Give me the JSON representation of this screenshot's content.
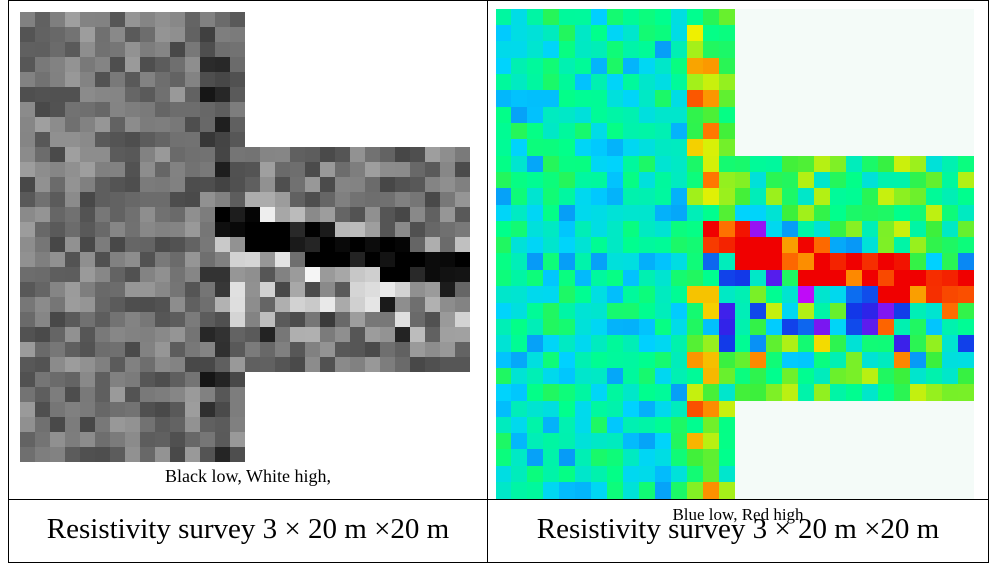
{
  "panels": [
    {
      "legend": "Black low,  White high,",
      "caption": "Resistivity survey 3 × 20 m ×20 m",
      "palette": "grayscale"
    },
    {
      "legend": "Blue low,  Red high",
      "caption": "Resistivity survey 3 × 20 m ×20 m",
      "palette": "rainbow"
    }
  ],
  "colors": {
    "border": "#000000",
    "background": "#ffffff"
  }
}
